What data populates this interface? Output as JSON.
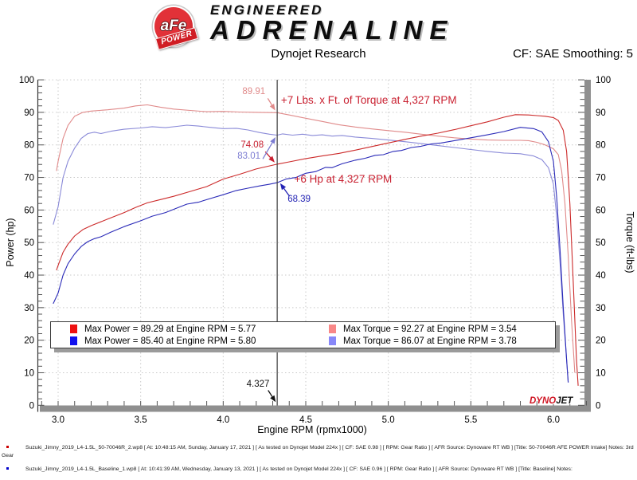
{
  "header": {
    "brand_badge": "aFe",
    "brand_badge_sub": "POWER",
    "brand_line1": "ENGINEERED",
    "brand_line2": "ADRENALINE",
    "title": "Dynojet Research",
    "cf_label": "CF: SAE Smoothing: 5"
  },
  "watermark": {
    "part1": "DYNO",
    "part2": "JET"
  },
  "legend": {
    "items": [
      {
        "swatch_color": "#ee1111",
        "label": "Max Power = 89.29 at Engine RPM = 5.77"
      },
      {
        "swatch_color": "#f98888",
        "label": "Max Torque = 92.27 at Engine RPM = 3.54"
      },
      {
        "swatch_color": "#1111ee",
        "label": "Max Power = 85.40 at Engine RPM = 5.80"
      },
      {
        "swatch_color": "#8888f9",
        "label": "Max Torque = 86.07 at Engine RPM = 3.78"
      }
    ]
  },
  "footnotes": [
    {
      "bullet_color": "#cc0000",
      "text": "Suzuki_Jimny_2019_L4-1.5L_50-70046R_2.wp8 [ At: 10:48:15 AM, Sunday, January 17, 2021 ] [ As tested on Dynojet Model 224x ] [ CF: SAE 0.98 ] [ RPM: Gear Ratio ] [ AFR Source: Dynoware RT WB ] [Title: 50-70046R AFE POWER Intake]  Notes: 3rd Gear"
    },
    {
      "bullet_color": "#0000cc",
      "text": "Suzuki_Jimny_2019_L4-1.5L_Baseline_1.wp8 [ At: 10:41:39 AM, Wednesday, January 13, 2021 ] [ As tested on Dynojet Model 224x ] [ CF: SAE 0.96 ] [ RPM: Gear Ratio ] [ AFR Source: Dynoware RT WB ] [Title: Baseline]  Notes:"
    }
  ],
  "chart_data": {
    "type": "line",
    "title": "Dynojet Research",
    "xlabel": "Engine RPM (rpmx1000)",
    "ylabel_left": "Power (hp)",
    "ylabel_right": "Torque (ft-lbs)",
    "xlim": [
      2.877,
      6.203
    ],
    "ylim": [
      0,
      100
    ],
    "x_major_ticks": [
      3.0,
      3.5,
      4.0,
      4.5,
      5.0,
      5.5,
      6.0
    ],
    "x_minor_step": 0.1,
    "y_major_step": 10,
    "y_minor_step": 2,
    "grid": true,
    "cursor_x": 4.327,
    "legend_position": "lower-center",
    "series": [
      {
        "name": "torque-afe",
        "label": "Max Torque = 92.27 at Engine RPM = 3.54",
        "color": "#e08a8a",
        "points": [
          [
            2.99,
            72
          ],
          [
            3.0,
            75
          ],
          [
            3.03,
            82
          ],
          [
            3.06,
            86
          ],
          [
            3.1,
            88.8
          ],
          [
            3.15,
            90
          ],
          [
            3.2,
            90.4
          ],
          [
            3.3,
            90.8
          ],
          [
            3.4,
            91.3
          ],
          [
            3.47,
            92
          ],
          [
            3.54,
            92.3
          ],
          [
            3.62,
            91.6
          ],
          [
            3.7,
            91
          ],
          [
            3.8,
            90.6
          ],
          [
            3.9,
            90.2
          ],
          [
            4.0,
            90.3
          ],
          [
            4.1,
            90.1
          ],
          [
            4.2,
            90
          ],
          [
            4.327,
            89.91
          ],
          [
            4.4,
            89.2
          ],
          [
            4.5,
            88.2
          ],
          [
            4.6,
            87.2
          ],
          [
            4.7,
            86.2
          ],
          [
            4.8,
            85.5
          ],
          [
            4.9,
            84.9
          ],
          [
            5.0,
            84.4
          ],
          [
            5.1,
            83.9
          ],
          [
            5.2,
            83.3
          ],
          [
            5.3,
            82.7
          ],
          [
            5.4,
            82.2
          ],
          [
            5.5,
            81.8
          ],
          [
            5.6,
            81.5
          ],
          [
            5.7,
            81.4
          ],
          [
            5.8,
            81.4
          ],
          [
            5.85,
            81.3
          ],
          [
            5.9,
            80.8
          ],
          [
            5.95,
            80
          ],
          [
            6.0,
            78.8
          ],
          [
            6.03,
            77
          ],
          [
            6.05,
            72
          ],
          [
            6.07,
            62
          ],
          [
            6.09,
            46
          ],
          [
            6.11,
            26
          ],
          [
            6.13,
            10
          ]
        ]
      },
      {
        "name": "torque-baseline",
        "label": "Max Torque = 86.07 at Engine RPM = 3.78",
        "color": "#8a8ad8",
        "points": [
          [
            2.97,
            55.5
          ],
          [
            3.0,
            61
          ],
          [
            3.03,
            70
          ],
          [
            3.06,
            75
          ],
          [
            3.1,
            79
          ],
          [
            3.14,
            82
          ],
          [
            3.18,
            83.5
          ],
          [
            3.22,
            83.9
          ],
          [
            3.26,
            83.5
          ],
          [
            3.32,
            84.2
          ],
          [
            3.4,
            84.8
          ],
          [
            3.5,
            85.2
          ],
          [
            3.57,
            85.6
          ],
          [
            3.65,
            85.3
          ],
          [
            3.72,
            85.7
          ],
          [
            3.78,
            86.07
          ],
          [
            3.85,
            85.8
          ],
          [
            3.92,
            85.4
          ],
          [
            4.0,
            85
          ],
          [
            4.08,
            85.1
          ],
          [
            4.15,
            84.6
          ],
          [
            4.22,
            83.8
          ],
          [
            4.28,
            83.3
          ],
          [
            4.327,
            83.01
          ],
          [
            4.36,
            83.4
          ],
          [
            4.42,
            83
          ],
          [
            4.48,
            83.3
          ],
          [
            4.54,
            82.9
          ],
          [
            4.6,
            83.1
          ],
          [
            4.66,
            82.7
          ],
          [
            4.72,
            82.9
          ],
          [
            4.8,
            82.4
          ],
          [
            4.9,
            82
          ],
          [
            5.0,
            81.5
          ],
          [
            5.1,
            81
          ],
          [
            5.2,
            80.4
          ],
          [
            5.3,
            79.8
          ],
          [
            5.4,
            79.2
          ],
          [
            5.5,
            78.6
          ],
          [
            5.6,
            78
          ],
          [
            5.7,
            77.5
          ],
          [
            5.8,
            77.3
          ],
          [
            5.88,
            76.6
          ],
          [
            5.93,
            75.5
          ],
          [
            5.97,
            73
          ],
          [
            6.0,
            68
          ],
          [
            6.02,
            58
          ],
          [
            6.04,
            44
          ],
          [
            6.06,
            28
          ],
          [
            6.08,
            14
          ],
          [
            6.09,
            7
          ]
        ]
      },
      {
        "name": "power-afe",
        "label": "Max Power = 89.29 at Engine RPM = 5.77",
        "color": "#cc2a2a",
        "points": [
          [
            2.99,
            41.5
          ],
          [
            3.0,
            43
          ],
          [
            3.03,
            47
          ],
          [
            3.06,
            49.5
          ],
          [
            3.1,
            52
          ],
          [
            3.15,
            54
          ],
          [
            3.2,
            55.2
          ],
          [
            3.3,
            57.2
          ],
          [
            3.4,
            59.2
          ],
          [
            3.47,
            60.8
          ],
          [
            3.54,
            62.2
          ],
          [
            3.62,
            63.2
          ],
          [
            3.7,
            64.2
          ],
          [
            3.8,
            65.7
          ],
          [
            3.9,
            67.2
          ],
          [
            4.0,
            69.5
          ],
          [
            4.1,
            71
          ],
          [
            4.2,
            72.6
          ],
          [
            4.327,
            74.08
          ],
          [
            4.4,
            74.8
          ],
          [
            4.5,
            75.8
          ],
          [
            4.6,
            76.6
          ],
          [
            4.7,
            77.4
          ],
          [
            4.8,
            78.4
          ],
          [
            4.9,
            79.5
          ],
          [
            5.0,
            80.6
          ],
          [
            5.1,
            81.7
          ],
          [
            5.2,
            82.7
          ],
          [
            5.3,
            83.6
          ],
          [
            5.4,
            84.7
          ],
          [
            5.5,
            85.9
          ],
          [
            5.6,
            87.1
          ],
          [
            5.7,
            88.5
          ],
          [
            5.77,
            89.29
          ],
          [
            5.85,
            89.2
          ],
          [
            5.9,
            89
          ],
          [
            5.95,
            88.8
          ],
          [
            6.0,
            88.4
          ],
          [
            6.03,
            87.5
          ],
          [
            6.06,
            84.5
          ],
          [
            6.08,
            78
          ],
          [
            6.1,
            62
          ],
          [
            6.12,
            38
          ],
          [
            6.14,
            14
          ],
          [
            6.15,
            6
          ]
        ]
      },
      {
        "name": "power-baseline",
        "label": "Max Power = 85.40 at Engine RPM = 5.80",
        "color": "#2a2ab8",
        "points": [
          [
            2.97,
            31.2
          ],
          [
            3.0,
            34.5
          ],
          [
            3.03,
            40
          ],
          [
            3.06,
            43.5
          ],
          [
            3.1,
            46.5
          ],
          [
            3.14,
            48.8
          ],
          [
            3.18,
            50.3
          ],
          [
            3.22,
            51.2
          ],
          [
            3.26,
            51.8
          ],
          [
            3.32,
            53.2
          ],
          [
            3.4,
            54.9
          ],
          [
            3.5,
            56.7
          ],
          [
            3.57,
            58.1
          ],
          [
            3.65,
            59.2
          ],
          [
            3.72,
            60.6
          ],
          [
            3.78,
            61.8
          ],
          [
            3.85,
            62.4
          ],
          [
            3.92,
            63.5
          ],
          [
            4.0,
            64.7
          ],
          [
            4.08,
            66
          ],
          [
            4.15,
            66.7
          ],
          [
            4.22,
            67.4
          ],
          [
            4.28,
            67.9
          ],
          [
            4.327,
            68.39
          ],
          [
            4.38,
            69.5
          ],
          [
            4.44,
            70
          ],
          [
            4.5,
            71.3
          ],
          [
            4.56,
            71.8
          ],
          [
            4.62,
            73.1
          ],
          [
            4.66,
            73
          ],
          [
            4.72,
            74.2
          ],
          [
            4.8,
            75.3
          ],
          [
            4.86,
            75.9
          ],
          [
            4.92,
            76.8
          ],
          [
            4.97,
            77
          ],
          [
            5.03,
            78
          ],
          [
            5.08,
            78.3
          ],
          [
            5.14,
            79.2
          ],
          [
            5.2,
            79.6
          ],
          [
            5.26,
            80.3
          ],
          [
            5.32,
            80.6
          ],
          [
            5.4,
            81.3
          ],
          [
            5.5,
            82.2
          ],
          [
            5.6,
            83.1
          ],
          [
            5.7,
            84.1
          ],
          [
            5.8,
            85.4
          ],
          [
            5.88,
            85
          ],
          [
            5.93,
            84
          ],
          [
            5.97,
            81
          ],
          [
            6.0,
            75
          ],
          [
            6.02,
            64
          ],
          [
            6.04,
            48
          ],
          [
            6.06,
            30
          ],
          [
            6.08,
            14
          ],
          [
            6.09,
            7
          ]
        ]
      }
    ],
    "annotations": [
      {
        "id": "torque-afe-cursor-value",
        "text": "89.91",
        "color": "#e08a8a",
        "pos": [
          4.255,
          97.8
        ],
        "anchor": "end",
        "size": 11.5
      },
      {
        "id": "torque-gain-note",
        "text": "+7 Lbs. x Ft. of Torque at 4,327 RPM",
        "color": "#c92131",
        "pos": [
          4.35,
          95.3
        ],
        "anchor": "start",
        "size": 13.5
      },
      {
        "id": "power-afe-cursor-value",
        "text": "74.08",
        "color": "#c92131",
        "pos": [
          4.245,
          81.5
        ],
        "anchor": "end",
        "size": 11.5
      },
      {
        "id": "torque-baseline-cursor-value",
        "text": "83.01",
        "color": "#7c7cd2",
        "pos": [
          4.225,
          78.0
        ],
        "anchor": "end",
        "size": 11.5
      },
      {
        "id": "hp-gain-note",
        "text": "+6 Hp at 4,327 RPM",
        "color": "#c92131",
        "pos": [
          4.43,
          71.2
        ],
        "anchor": "start",
        "size": 13.5
      },
      {
        "id": "power-baseline-cursor-value",
        "text": "68.39",
        "color": "#2323b4",
        "pos": [
          4.39,
          64.8
        ],
        "anchor": "start",
        "size": 11.5
      },
      {
        "id": "cursor-rpm-value",
        "text": "4.327",
        "color": "#111111",
        "pos": [
          4.28,
          8.0
        ],
        "anchor": "end",
        "size": 11.5
      }
    ],
    "arrows": [
      {
        "color": "#e08a8a",
        "from": [
          4.27,
          94.3
        ],
        "to": [
          4.315,
          90.6
        ]
      },
      {
        "color": "#c92131",
        "from": [
          4.255,
          77.9
        ],
        "to": [
          4.312,
          74.6
        ]
      },
      {
        "color": "#7c7cd2",
        "from": [
          4.24,
          75.7
        ],
        "to": [
          4.317,
          82.4
        ]
      },
      {
        "color": "#2323b4",
        "from": [
          4.402,
          64.2
        ],
        "to": [
          4.345,
          68.2
        ]
      },
      {
        "color": "#111111",
        "from": [
          4.272,
          4.6
        ],
        "to": [
          4.318,
          1.0
        ]
      }
    ]
  }
}
